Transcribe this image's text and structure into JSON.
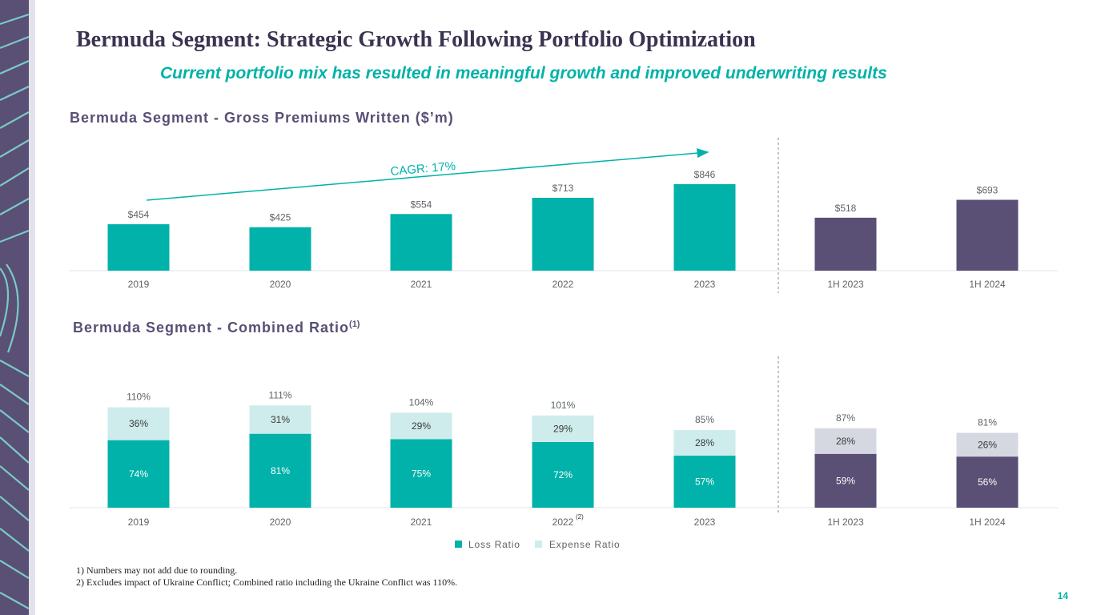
{
  "title": "Bermuda Segment: Strategic Growth Following Portfolio Optimization",
  "subtitle": "Current portfolio mix has resulted in meaningful growth and improved underwriting results",
  "page_number": "14",
  "footnotes": [
    "1) Numbers may not add due to rounding.",
    "2) Excludes impact of Ukraine Conflict; Combined ratio including the Ukraine Conflict was 110%."
  ],
  "colors": {
    "teal": "#00b2a9",
    "purple": "#5a4f74",
    "light_teal": "#cdeceb",
    "light_gray": "#d5d8e1",
    "text_gray": "#5f6368"
  },
  "chart_data": [
    {
      "type": "bar",
      "title": "Bermuda Segment - Gross Premiums Written ($’m)",
      "categories": [
        "2019",
        "2020",
        "2021",
        "2022",
        "2023",
        "1H 2023",
        "1H 2024"
      ],
      "values": [
        454,
        425,
        554,
        713,
        846,
        518,
        693
      ],
      "labels": [
        "$454",
        "$425",
        "$554",
        "$713",
        "$846",
        "$518",
        "$693"
      ],
      "annotation": "CAGR: 17%",
      "ylim": [
        0,
        846
      ]
    },
    {
      "type": "bar",
      "title": "Bermuda Segment - Combined Ratio",
      "title_superscript": "(1)",
      "categories": [
        "2019",
        "2020",
        "2021",
        "2022",
        "2023",
        "1H 2023",
        "1H 2024"
      ],
      "category_superscripts": [
        "",
        "",
        "",
        "(2)",
        "",
        "",
        ""
      ],
      "stacked": true,
      "series": [
        {
          "name": "Loss Ratio",
          "values": [
            74,
            81,
            75,
            72,
            57,
            59,
            56
          ],
          "labels": [
            "74%",
            "81%",
            "75%",
            "72%",
            "57%",
            "59%",
            "56%"
          ]
        },
        {
          "name": "Expense Ratio",
          "values": [
            36,
            31,
            29,
            29,
            28,
            28,
            26
          ],
          "labels": [
            "36%",
            "31%",
            "29%",
            "29%",
            "28%",
            "28%",
            "26%"
          ]
        }
      ],
      "totals": [
        "110%",
        "111%",
        "104%",
        "101%",
        "85%",
        "87%",
        "81%"
      ],
      "legend": [
        "Loss Ratio",
        "Expense Ratio"
      ],
      "ylim": [
        0,
        111
      ]
    }
  ]
}
